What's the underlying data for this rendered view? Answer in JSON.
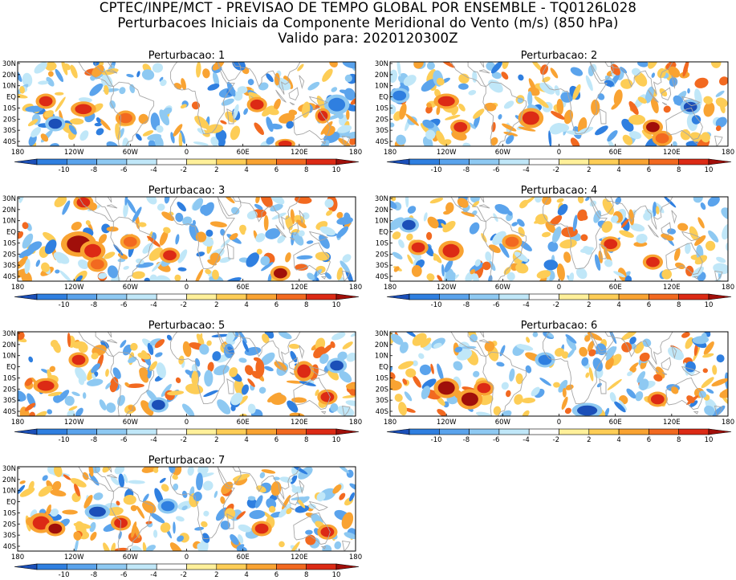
{
  "header": {
    "line1": "CPTEC/INPE/MCT - PREVISAO DE TEMPO GLOBAL POR ENSEMBLE - TQ0126L028",
    "line2": "Perturbacoes Iniciais da Componente Meridional do Vento (m/s) (850 hPa)",
    "line3": "Valido para: 2020120300Z"
  },
  "chart_data": {
    "type": "heatmap",
    "panels": [
      {
        "title": "Perturbacao: 1"
      },
      {
        "title": "Perturbacao: 2"
      },
      {
        "title": "Perturbacao: 3"
      },
      {
        "title": "Perturbacao: 4"
      },
      {
        "title": "Perturbacao: 5"
      },
      {
        "title": "Perturbacao: 6"
      },
      {
        "title": "Perturbacao: 7"
      }
    ],
    "x_ticks": [
      "180",
      "120W",
      "60W",
      "0",
      "60E",
      "120E",
      "180"
    ],
    "y_ticks": [
      "30N",
      "20N",
      "10N",
      "EQ",
      "10S",
      "20S",
      "30S",
      "40S"
    ],
    "colorbar": {
      "labels": [
        "-10",
        "-8",
        "-6",
        "-4",
        "-2",
        "2",
        "4",
        "6",
        "8",
        "10"
      ],
      "colors": [
        "#1b4fb8",
        "#2f7fe0",
        "#5aa3ec",
        "#8ec9f2",
        "#c0e7f8",
        "#ffffff",
        "#fff09a",
        "#fdcd56",
        "#f9a332",
        "#f26920",
        "#dc2a15",
        "#a00f0a"
      ]
    },
    "xlim": [
      "180",
      "180"
    ],
    "ylim": [
      "45S",
      "30N"
    ]
  },
  "colors": {
    "coast": "#a6a6a6",
    "frame": "#000000"
  }
}
